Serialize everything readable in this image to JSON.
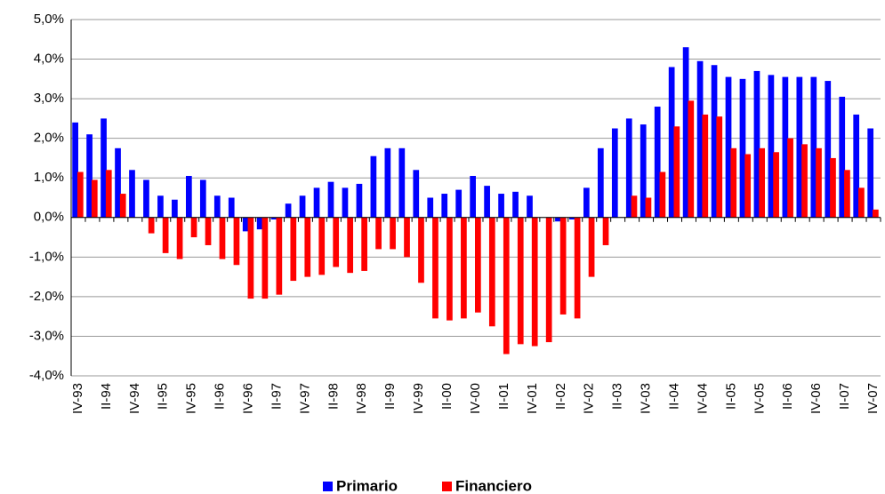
{
  "chart_data": {
    "type": "bar",
    "categories": [
      "IV-93",
      null,
      "II-94",
      null,
      "IV-94",
      null,
      "II-95",
      null,
      "IV-95",
      null,
      "II-96",
      null,
      "IV-96",
      null,
      "II-97",
      null,
      "IV-97",
      null,
      "II-98",
      null,
      "IV-98",
      null,
      "II-99",
      null,
      "IV-99",
      null,
      "II-00",
      null,
      "IV-00",
      null,
      "II-01",
      null,
      "IV-01",
      null,
      "II-02",
      null,
      "IV-02",
      null,
      "II-03",
      null,
      "IV-03",
      null,
      "II-04",
      null,
      "IV-04",
      null,
      "II-05",
      null,
      "IV-05",
      null,
      "II-06",
      null,
      "IV-06",
      null,
      "II-07",
      null,
      "IV-07"
    ],
    "series": [
      {
        "name": "Primario",
        "color": "#0000ff",
        "values": [
          2.4,
          2.1,
          2.5,
          1.75,
          1.2,
          0.95,
          0.55,
          0.45,
          1.05,
          0.95,
          0.55,
          0.5,
          -0.35,
          -0.3,
          -0.05,
          0.35,
          0.55,
          0.75,
          0.9,
          0.75,
          0.85,
          1.55,
          1.75,
          1.75,
          1.2,
          0.5,
          0.6,
          0.7,
          1.05,
          0.8,
          0.6,
          0.65,
          0.55,
          0,
          -0.1,
          -0.05,
          0.75,
          1.75,
          2.25,
          2.5,
          2.35,
          2.8,
          3.8,
          4.3,
          3.95,
          3.85,
          3.55,
          3.5,
          3.7,
          3.6,
          3.55,
          3.55,
          3.55,
          3.45,
          3.05,
          2.6,
          2.25
        ]
      },
      {
        "name": "Financiero",
        "color": "#ff0000",
        "values": [
          1.15,
          0.95,
          1.2,
          0.6,
          0,
          -0.4,
          -0.9,
          -1.05,
          -0.5,
          -0.7,
          -1.05,
          -1.2,
          -2.05,
          -2.05,
          -1.95,
          -1.6,
          -1.5,
          -1.45,
          -1.25,
          -1.4,
          -1.35,
          -0.8,
          -0.8,
          -1.0,
          -1.65,
          -2.55,
          -2.6,
          -2.55,
          -2.4,
          -2.75,
          -3.45,
          -3.2,
          -3.25,
          -3.15,
          -2.45,
          -2.55,
          -1.5,
          -0.7,
          0,
          0.55,
          0.5,
          1.15,
          2.3,
          2.95,
          2.6,
          2.55,
          1.75,
          1.6,
          1.75,
          1.65,
          2.0,
          1.85,
          1.75,
          1.5,
          1.2,
          0.75,
          0.2
        ]
      }
    ],
    "ylim": [
      -4,
      5
    ],
    "yticks": [
      {
        "value": -4,
        "label": "-4,0%"
      },
      {
        "value": -3,
        "label": "-3,0%"
      },
      {
        "value": -2,
        "label": "-2,0%"
      },
      {
        "value": -1,
        "label": "-1,0%"
      },
      {
        "value": 0,
        "label": "0,0%"
      },
      {
        "value": 1,
        "label": "1,0%"
      },
      {
        "value": 2,
        "label": "2,0%"
      },
      {
        "value": 3,
        "label": "3,0%"
      },
      {
        "value": 4,
        "label": "4,0%"
      },
      {
        "value": 5,
        "label": "5,0%"
      }
    ],
    "grid": true,
    "legend": "bottom"
  }
}
